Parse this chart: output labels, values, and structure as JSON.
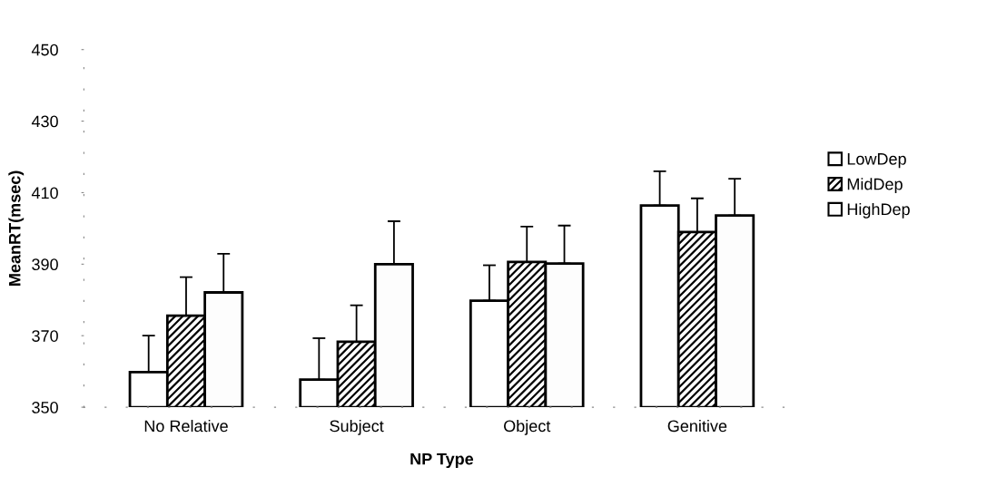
{
  "chart_data": {
    "type": "bar",
    "xlabel": "NP Type",
    "ylabel": "MeanRT(msec)",
    "categories": [
      "No Relative",
      "Subject",
      "Object",
      "Genitive"
    ],
    "series": [
      {
        "name": "LowDep",
        "color": "#ffffff",
        "values": [
          359.8,
          357.7,
          379.8,
          406.4
        ],
        "errors": [
          [
            359.8,
            370
          ],
          [
            357.7,
            369.3
          ],
          [
            379.8,
            389.7
          ],
          [
            406.4,
            416
          ]
        ]
      },
      {
        "name": "MidDep",
        "color": "#000000",
        "values": [
          375.6,
          368.3,
          390.6,
          399
        ],
        "errors": [
          [
            375.6,
            386.4
          ],
          [
            368.3,
            378.5
          ],
          [
            390.6,
            400.5
          ],
          [
            399,
            408.4
          ]
        ]
      },
      {
        "name": "HighDep",
        "color": "#fdfdfd",
        "values": [
          382.1,
          390,
          390.2,
          403.6
        ],
        "errors": [
          [
            382.1,
            392.9
          ],
          [
            390,
            402
          ],
          [
            390.2,
            400.8
          ],
          [
            403.6,
            413.9
          ]
        ]
      }
    ],
    "ylim": [
      350,
      450
    ],
    "yticks": [
      350,
      370,
      390,
      410,
      430,
      450
    ],
    "grid": false,
    "legend": "right"
  }
}
